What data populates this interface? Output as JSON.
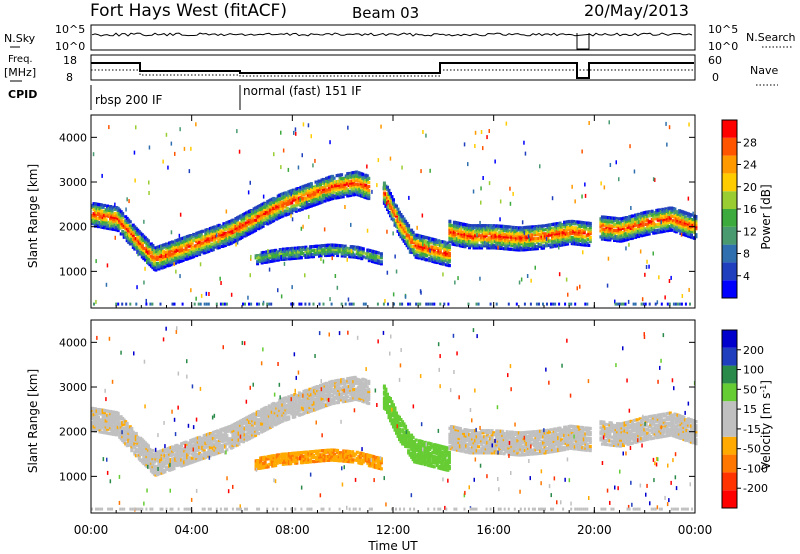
{
  "header": {
    "station": "Fort Hays West (fitACF)",
    "beam": "Beam 03",
    "date": "20/May/2013"
  },
  "top_panels": {
    "nsky_label": "N.Sky",
    "nsearch_label": "N.Search",
    "noise_ticks_left": [
      "10^5",
      "10^0"
    ],
    "noise_ticks_right": [
      "10^5",
      "10^0"
    ],
    "freq_label": "Freq.",
    "freq_unit": "[MHz]",
    "freq_ticks": [
      "18",
      "8"
    ],
    "nave_label": "Nave",
    "nave_ticks": [
      "60",
      "0"
    ],
    "cpid_label": "CPID",
    "cpid_segments": [
      {
        "label": "rbsp 200 IF",
        "start_hour": 0,
        "end_hour": 6
      },
      {
        "label": "normal (fast) 151 IF",
        "start_hour": 6,
        "end_hour": 24
      }
    ]
  },
  "colors": {
    "power_scale": [
      "#0000ff",
      "#1f3fbf",
      "#2f6faf",
      "#4a9a70",
      "#3caa3c",
      "#9acd32",
      "#ffcc00",
      "#ff9900",
      "#ff5500",
      "#ff0000"
    ],
    "velocity_scale": [
      "#ff0000",
      "#ff3300",
      "#ff7700",
      "#ffaa00",
      "#c0c0c0",
      "#c0c0c0",
      "#66cc33",
      "#2a8a4a",
      "#1f3fbf",
      "#0000cc"
    ]
  },
  "chart_data": [
    {
      "type": "heatmap",
      "name": "power",
      "ylabel": "Slant Range [km]",
      "yticks": [
        "1000",
        "2000",
        "3000",
        "4000"
      ],
      "ylim": [
        180,
        4500
      ],
      "xlim": [
        0,
        24
      ],
      "colorbar_label": "Power [dB]",
      "colorbar_ticks": [
        "4",
        "8",
        "12",
        "16",
        "20",
        "24",
        "28"
      ],
      "scatter_bands": [
        {
          "x": [
            0.0,
            1.0,
            1.8,
            2.5,
            3.5,
            4.5,
            5.5,
            6.5,
            7.5,
            8.5,
            9.5,
            10.5,
            11.0
          ],
          "y": [
            2300,
            2200,
            1700,
            1300,
            1500,
            1700,
            1900,
            2200,
            2500,
            2700,
            2900,
            3000,
            2900
          ]
        },
        {
          "x": [
            11.6,
            12.2,
            12.8,
            13.5,
            14.2
          ],
          "y": [
            2800,
            2100,
            1600,
            1500,
            1400
          ]
        },
        {
          "x": [
            14.2,
            15.0,
            16.0,
            17.0,
            18.0,
            19.0,
            19.8
          ],
          "y": [
            1900,
            1800,
            1800,
            1750,
            1800,
            1900,
            1850
          ]
        },
        {
          "x": [
            20.2,
            21.0,
            22.0,
            23.0,
            24.0
          ],
          "y": [
            2000,
            1950,
            2100,
            2200,
            2000
          ]
        },
        {
          "x": [
            6.5,
            7.5,
            8.5,
            9.5,
            10.5,
            11.5
          ],
          "y": [
            1300,
            1400,
            1450,
            1500,
            1450,
            1300
          ]
        }
      ]
    },
    {
      "type": "heatmap",
      "name": "velocity",
      "ylabel": "Slant Range [km]",
      "yticks": [
        "1000",
        "2000",
        "3000",
        "4000"
      ],
      "ylim": [
        180,
        4500
      ],
      "xlim": [
        0,
        24
      ],
      "colorbar_label": "Velocity [m s",
      "colorbar_label_sup": "-1",
      "colorbar_label_end": "]",
      "colorbar_ticks": [
        "200",
        "100",
        "50",
        "15",
        "-15",
        "-50",
        "-100",
        "-200"
      ],
      "xlabel": "Time UT",
      "xticks": [
        "00:00",
        "04:00",
        "08:00",
        "12:00",
        "16:00",
        "20:00",
        "00:00"
      ]
    }
  ]
}
